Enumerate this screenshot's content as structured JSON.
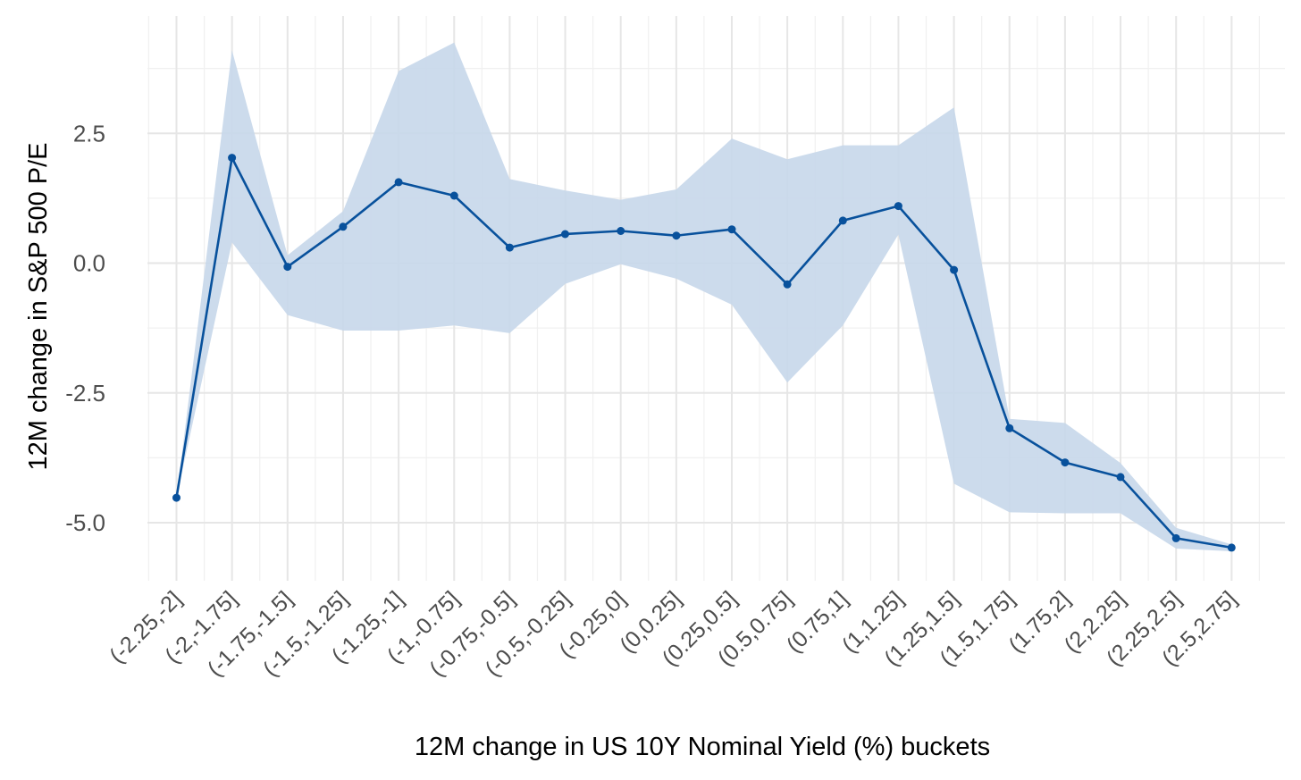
{
  "chart_data": {
    "type": "line",
    "title": "",
    "xlabel": "12M change in US 10Y Nominal Yield (%) buckets",
    "ylabel": "12M change in S&P 500 P/E",
    "categories": [
      "(-2.25,-2]",
      "(-2,-1.75]",
      "(-1.75,-1.5]",
      "(-1.5,-1.25]",
      "(-1.25,-1]",
      "(-1,-0.75]",
      "(-0.75,-0.5]",
      "(-0.5,-0.25]",
      "(-0.25,0]",
      "(0,0.25]",
      "(0.25,0.5]",
      "(0.5,0.75]",
      "(0.75,1]",
      "(1,1.25]",
      "(1.25,1.5]",
      "(1.5,1.75]",
      "(1.75,2]",
      "(2,2.25]",
      "(2.25,2.5]",
      "(2.5,2.75]"
    ],
    "series": [
      {
        "values": [
          -4.52,
          2.03,
          -0.07,
          0.7,
          1.56,
          1.3,
          0.3,
          0.56,
          0.62,
          0.53,
          0.65,
          -0.41,
          0.82,
          1.1,
          -0.13,
          -3.18,
          -3.84,
          -4.12,
          -5.3,
          -5.48
        ],
        "band_low": [
          -4.52,
          0.4,
          -1.0,
          -1.3,
          -1.3,
          -1.2,
          -1.35,
          -0.4,
          -0.02,
          -0.3,
          -0.8,
          -2.3,
          -1.2,
          0.55,
          -4.25,
          -4.8,
          -4.82,
          -4.82,
          -5.5,
          -5.55
        ],
        "band_high": [
          -4.52,
          4.1,
          0.15,
          1.0,
          3.7,
          4.25,
          1.62,
          1.4,
          1.22,
          1.42,
          2.4,
          2.0,
          2.27,
          2.27,
          3.0,
          -3.0,
          -3.08,
          -3.85,
          -5.1,
          -5.42
        ],
        "color": "#08519c",
        "band_color": "#c6d7ea"
      }
    ],
    "yticks": [
      "2.5",
      "0.0",
      "-2.5",
      "-5.0"
    ],
    "ylim": [
      -6.1,
      4.5
    ],
    "grid": true,
    "legend": "none"
  }
}
